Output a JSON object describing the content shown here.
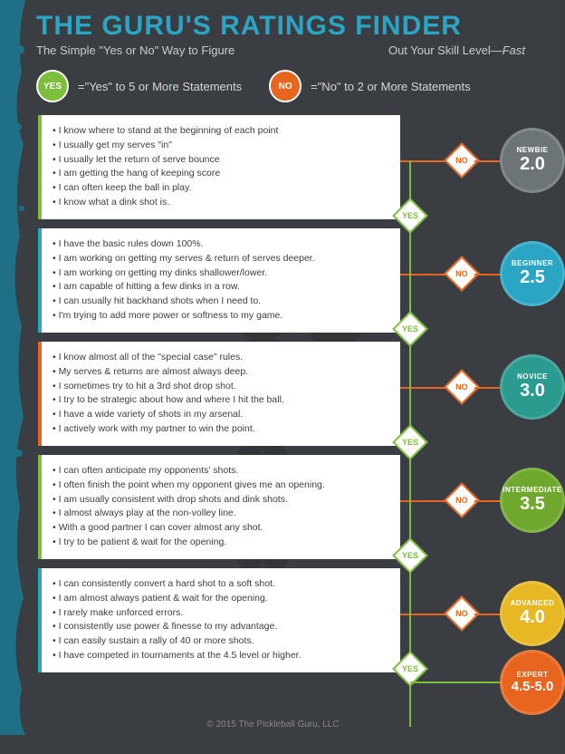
{
  "header": {
    "title": "THE GURU'S RATINGS FINDER",
    "subtitle_left": "The Simple \"Yes or No\" Way  to Figure",
    "subtitle_right_pre": "Out Your Skill Level—",
    "subtitle_right_em": "Fast"
  },
  "legend": {
    "yes_badge": "YES",
    "yes_text": "=\"Yes\" to 5 or More Statements",
    "no_badge": "NO",
    "no_text": "=\"No\" to 2 or More Statements"
  },
  "diamond_labels": {
    "yes": "YES",
    "no": "NO"
  },
  "colors": {
    "bg": "#3a3e42",
    "title": "#2aa5c4",
    "yes": "#7bbf3c",
    "no": "#e8651f",
    "edge_splash": "#1f6f87"
  },
  "levels": [
    {
      "accent": "#7bbf3c",
      "circle_color": "#6d7478",
      "label": "NEWBIE",
      "value": "2.0",
      "statements": [
        "I know where to stand at the beginning of each point",
        "I usually get my serves \"in\"",
        "I usually let the return of serve bounce",
        "I am getting the hang of keeping score",
        "I can often keep the ball in play.",
        "I know what a dink shot is."
      ]
    },
    {
      "accent": "#2aa5c4",
      "circle_color": "#2aa5c4",
      "label": "BEGINNER",
      "value": "2.5",
      "statements": [
        "I have the basic rules down 100%.",
        "I am working on getting my serves & return of serves deeper.",
        "I am working on getting my dinks shallower/lower.",
        "I am capable of hitting a few dinks in a row.",
        "I can usually hit backhand shots when I need to.",
        "I'm trying to add more power or softness to my game."
      ]
    },
    {
      "accent": "#e8651f",
      "circle_color": "#2b9b8f",
      "label": "NOVICE",
      "value": "3.0",
      "statements": [
        "I know almost all of the \"special case\" rules.",
        "My serves & returns are almost always deep.",
        "I sometimes try to hit a 3rd shot drop shot.",
        "I try to be strategic about how and where I hit the ball.",
        "I have a wide variety of shots in my arsenal.",
        "I actively work with my partner to win the point."
      ]
    },
    {
      "accent": "#7bbf3c",
      "circle_color": "#6fa82d",
      "label": "INTERMEDIATE",
      "value": "3.5",
      "statements": [
        "I can often anticipate my opponents' shots.",
        "I often finish the point when my opponent gives me an opening.",
        "I am usually consistent with drop shots and dink shots.",
        "I almost always play at the non-volley line.",
        "With a good partner I can cover almost any shot.",
        "I try to be patient & wait for the opening."
      ]
    },
    {
      "accent": "#2aa5c4",
      "circle_color": "#e7b823",
      "label": "ADVANCED",
      "value": "4.0",
      "statements": [
        "I can consistently convert a hard shot to a soft shot.",
        "I am almost always patient & wait for the opening.",
        "I rarely make unforced errors.",
        "I consistently use power & finesse to my advantage.",
        "I can easily sustain a rally of 40 or more shots.",
        "I have competed in tournaments at the 4.5 level or higher."
      ]
    }
  ],
  "expert": {
    "circle_color": "#e8651f",
    "label": "EXPERT",
    "value": "4.5-5.0"
  },
  "footer": "© 2015 The Pickleball Guru, LLC"
}
